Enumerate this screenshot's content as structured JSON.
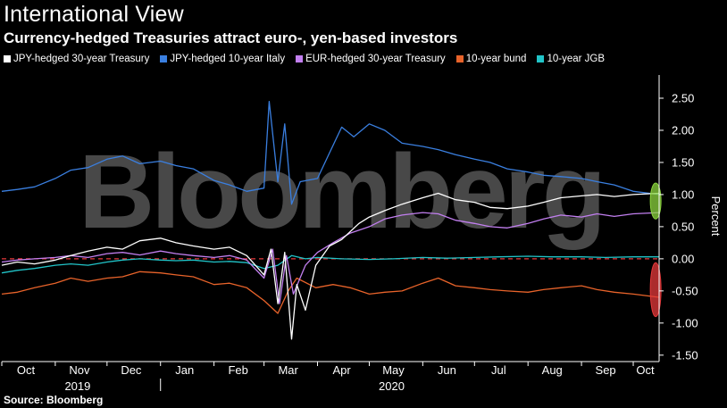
{
  "header": {
    "title": "International View",
    "subtitle": "Currency-hedged Treasuries attract euro-, yen-based investors"
  },
  "footer": {
    "source": "Source: Bloomberg"
  },
  "watermark": "Bloomberg",
  "chart_data": {
    "type": "line",
    "title": "International View",
    "subtitle": "Currency-hedged Treasuries attract euro-, yen-based investors",
    "ylabel": "Percent",
    "ylim": [
      -1.6,
      2.75
    ],
    "yticks": [
      2.5,
      2.0,
      1.5,
      1.0,
      0.5,
      0.0,
      -0.5,
      -1.0,
      -1.5
    ],
    "ytick_labels": [
      "2.50",
      "2.00",
      "1.50",
      "1.00",
      "0.50",
      "0.00",
      "-0.50",
      "-1.00",
      "-1.50"
    ],
    "y_axis_position": "right",
    "grid": false,
    "zero_line": {
      "value": 0,
      "color": "#e5393b",
      "style": "dashed"
    },
    "legend_position": "top",
    "x_start": "2019-10-01",
    "x_end": "2020-10-16",
    "month_labels": [
      {
        "label": "Oct",
        "date": "2019-10-15"
      },
      {
        "label": "Nov",
        "date": "2019-11-15"
      },
      {
        "label": "Dec",
        "date": "2019-12-15"
      },
      {
        "label": "Jan",
        "date": "2020-01-15"
      },
      {
        "label": "Feb",
        "date": "2020-02-15"
      },
      {
        "label": "Mar",
        "date": "2020-03-15"
      },
      {
        "label": "Apr",
        "date": "2020-04-15"
      },
      {
        "label": "May",
        "date": "2020-05-15"
      },
      {
        "label": "Jun",
        "date": "2020-06-15"
      },
      {
        "label": "Jul",
        "date": "2020-07-15"
      },
      {
        "label": "Aug",
        "date": "2020-08-15"
      },
      {
        "label": "Sep",
        "date": "2020-09-15"
      },
      {
        "label": "Oct",
        "date": "2020-10-08"
      }
    ],
    "year_labels": [
      {
        "label": "2019",
        "date": "2019-11-15"
      },
      {
        "label": "2020",
        "date": "2020-05-15"
      }
    ],
    "year_divider": "2020-01-01",
    "series": [
      {
        "name": "JPY-hedged 30-year Treasury",
        "color": "#ffffff",
        "points": [
          [
            "2019-10-01",
            -0.1
          ],
          [
            "2019-10-10",
            -0.05
          ],
          [
            "2019-10-20",
            -0.08
          ],
          [
            "2019-11-01",
            -0.02
          ],
          [
            "2019-11-10",
            0.05
          ],
          [
            "2019-11-20",
            0.12
          ],
          [
            "2019-12-01",
            0.18
          ],
          [
            "2019-12-10",
            0.15
          ],
          [
            "2019-12-20",
            0.28
          ],
          [
            "2020-01-01",
            0.32
          ],
          [
            "2020-01-10",
            0.25
          ],
          [
            "2020-01-20",
            0.2
          ],
          [
            "2020-02-01",
            0.15
          ],
          [
            "2020-02-10",
            0.18
          ],
          [
            "2020-02-20",
            0.05
          ],
          [
            "2020-03-01",
            -0.25
          ],
          [
            "2020-03-05",
            0.15
          ],
          [
            "2020-03-09",
            -0.7
          ],
          [
            "2020-03-13",
            0.1
          ],
          [
            "2020-03-17",
            -1.25
          ],
          [
            "2020-03-20",
            -0.4
          ],
          [
            "2020-03-25",
            -0.8
          ],
          [
            "2020-03-31",
            -0.1
          ],
          [
            "2020-04-08",
            0.2
          ],
          [
            "2020-04-15",
            0.3
          ],
          [
            "2020-04-25",
            0.55
          ],
          [
            "2020-05-01",
            0.65
          ],
          [
            "2020-05-10",
            0.75
          ],
          [
            "2020-05-20",
            0.85
          ],
          [
            "2020-06-01",
            0.95
          ],
          [
            "2020-06-10",
            1.02
          ],
          [
            "2020-06-20",
            0.92
          ],
          [
            "2020-07-01",
            0.88
          ],
          [
            "2020-07-10",
            0.8
          ],
          [
            "2020-07-20",
            0.78
          ],
          [
            "2020-08-01",
            0.82
          ],
          [
            "2020-08-10",
            0.88
          ],
          [
            "2020-08-20",
            0.95
          ],
          [
            "2020-09-01",
            0.98
          ],
          [
            "2020-09-10",
            1.0
          ],
          [
            "2020-09-20",
            0.97
          ],
          [
            "2020-10-01",
            1.0
          ],
          [
            "2020-10-16",
            1.02
          ]
        ]
      },
      {
        "name": "JPY-hedged 10-year Italy",
        "color": "#3a7fe0",
        "points": [
          [
            "2019-10-01",
            1.05
          ],
          [
            "2019-10-10",
            1.08
          ],
          [
            "2019-10-20",
            1.12
          ],
          [
            "2019-11-01",
            1.25
          ],
          [
            "2019-11-10",
            1.38
          ],
          [
            "2019-11-20",
            1.42
          ],
          [
            "2019-12-01",
            1.55
          ],
          [
            "2019-12-10",
            1.6
          ],
          [
            "2019-12-20",
            1.48
          ],
          [
            "2020-01-01",
            1.52
          ],
          [
            "2020-01-10",
            1.45
          ],
          [
            "2020-01-20",
            1.4
          ],
          [
            "2020-02-01",
            1.22
          ],
          [
            "2020-02-10",
            1.15
          ],
          [
            "2020-02-20",
            1.05
          ],
          [
            "2020-03-01",
            1.1
          ],
          [
            "2020-03-04",
            2.45
          ],
          [
            "2020-03-09",
            1.2
          ],
          [
            "2020-03-13",
            2.1
          ],
          [
            "2020-03-17",
            0.85
          ],
          [
            "2020-03-22",
            1.2
          ],
          [
            "2020-04-01",
            1.25
          ],
          [
            "2020-04-08",
            1.65
          ],
          [
            "2020-04-15",
            2.05
          ],
          [
            "2020-04-22",
            1.9
          ],
          [
            "2020-05-01",
            2.1
          ],
          [
            "2020-05-10",
            2.0
          ],
          [
            "2020-05-20",
            1.8
          ],
          [
            "2020-06-01",
            1.75
          ],
          [
            "2020-06-10",
            1.7
          ],
          [
            "2020-06-20",
            1.62
          ],
          [
            "2020-07-01",
            1.55
          ],
          [
            "2020-07-10",
            1.5
          ],
          [
            "2020-07-20",
            1.4
          ],
          [
            "2020-08-01",
            1.35
          ],
          [
            "2020-08-10",
            1.3
          ],
          [
            "2020-08-20",
            1.28
          ],
          [
            "2020-09-01",
            1.25
          ],
          [
            "2020-09-10",
            1.2
          ],
          [
            "2020-09-20",
            1.15
          ],
          [
            "2020-10-01",
            1.05
          ],
          [
            "2020-10-16",
            1.0
          ]
        ]
      },
      {
        "name": "EUR-hedged 30-year Treasury",
        "color": "#c27ff0",
        "points": [
          [
            "2019-10-01",
            -0.05
          ],
          [
            "2019-10-10",
            -0.02
          ],
          [
            "2019-10-20",
            0.0
          ],
          [
            "2019-11-01",
            0.02
          ],
          [
            "2019-11-10",
            0.05
          ],
          [
            "2019-11-20",
            0.02
          ],
          [
            "2019-12-01",
            0.08
          ],
          [
            "2019-12-10",
            0.1
          ],
          [
            "2019-12-20",
            0.06
          ],
          [
            "2020-01-01",
            0.12
          ],
          [
            "2020-01-10",
            0.08
          ],
          [
            "2020-01-20",
            0.05
          ],
          [
            "2020-02-01",
            0.02
          ],
          [
            "2020-02-10",
            0.05
          ],
          [
            "2020-02-20",
            -0.02
          ],
          [
            "2020-03-01",
            -0.3
          ],
          [
            "2020-03-06",
            0.15
          ],
          [
            "2020-03-10",
            -0.7
          ],
          [
            "2020-03-14",
            0.05
          ],
          [
            "2020-03-18",
            -0.55
          ],
          [
            "2020-03-25",
            -0.1
          ],
          [
            "2020-04-01",
            0.1
          ],
          [
            "2020-04-10",
            0.25
          ],
          [
            "2020-04-20",
            0.4
          ],
          [
            "2020-05-01",
            0.5
          ],
          [
            "2020-05-10",
            0.62
          ],
          [
            "2020-05-20",
            0.68
          ],
          [
            "2020-06-01",
            0.72
          ],
          [
            "2020-06-10",
            0.7
          ],
          [
            "2020-06-20",
            0.6
          ],
          [
            "2020-07-01",
            0.55
          ],
          [
            "2020-07-10",
            0.5
          ],
          [
            "2020-07-20",
            0.48
          ],
          [
            "2020-08-01",
            0.55
          ],
          [
            "2020-08-10",
            0.62
          ],
          [
            "2020-08-20",
            0.68
          ],
          [
            "2020-09-01",
            0.65
          ],
          [
            "2020-09-10",
            0.7
          ],
          [
            "2020-09-20",
            0.66
          ],
          [
            "2020-10-01",
            0.7
          ],
          [
            "2020-10-16",
            0.72
          ]
        ]
      },
      {
        "name": "10-year bund",
        "color": "#e8632a",
        "points": [
          [
            "2019-10-01",
            -0.55
          ],
          [
            "2019-10-10",
            -0.52
          ],
          [
            "2019-10-20",
            -0.45
          ],
          [
            "2019-11-01",
            -0.38
          ],
          [
            "2019-11-10",
            -0.3
          ],
          [
            "2019-11-20",
            -0.35
          ],
          [
            "2019-12-01",
            -0.3
          ],
          [
            "2019-12-10",
            -0.28
          ],
          [
            "2019-12-20",
            -0.2
          ],
          [
            "2020-01-01",
            -0.22
          ],
          [
            "2020-01-10",
            -0.25
          ],
          [
            "2020-01-20",
            -0.28
          ],
          [
            "2020-02-01",
            -0.4
          ],
          [
            "2020-02-10",
            -0.38
          ],
          [
            "2020-02-20",
            -0.45
          ],
          [
            "2020-03-01",
            -0.65
          ],
          [
            "2020-03-09",
            -0.85
          ],
          [
            "2020-03-15",
            -0.5
          ],
          [
            "2020-03-20",
            -0.3
          ],
          [
            "2020-03-31",
            -0.45
          ],
          [
            "2020-04-10",
            -0.4
          ],
          [
            "2020-04-20",
            -0.45
          ],
          [
            "2020-05-01",
            -0.55
          ],
          [
            "2020-05-10",
            -0.52
          ],
          [
            "2020-05-20",
            -0.5
          ],
          [
            "2020-06-01",
            -0.38
          ],
          [
            "2020-06-10",
            -0.3
          ],
          [
            "2020-06-20",
            -0.42
          ],
          [
            "2020-07-01",
            -0.45
          ],
          [
            "2020-07-10",
            -0.48
          ],
          [
            "2020-07-20",
            -0.5
          ],
          [
            "2020-08-01",
            -0.52
          ],
          [
            "2020-08-10",
            -0.48
          ],
          [
            "2020-08-20",
            -0.45
          ],
          [
            "2020-09-01",
            -0.42
          ],
          [
            "2020-09-10",
            -0.48
          ],
          [
            "2020-09-20",
            -0.52
          ],
          [
            "2020-10-01",
            -0.55
          ],
          [
            "2020-10-16",
            -0.6
          ]
        ]
      },
      {
        "name": "10-year JGB",
        "color": "#21c4c8",
        "points": [
          [
            "2019-10-01",
            -0.22
          ],
          [
            "2019-10-10",
            -0.18
          ],
          [
            "2019-10-20",
            -0.15
          ],
          [
            "2019-11-01",
            -0.1
          ],
          [
            "2019-11-10",
            -0.08
          ],
          [
            "2019-11-20",
            -0.1
          ],
          [
            "2019-12-01",
            -0.05
          ],
          [
            "2019-12-10",
            -0.02
          ],
          [
            "2019-12-20",
            0.0
          ],
          [
            "2020-01-01",
            -0.02
          ],
          [
            "2020-01-10",
            -0.03
          ],
          [
            "2020-01-20",
            -0.02
          ],
          [
            "2020-02-01",
            -0.05
          ],
          [
            "2020-02-10",
            -0.04
          ],
          [
            "2020-02-20",
            -0.06
          ],
          [
            "2020-03-01",
            -0.15
          ],
          [
            "2020-03-09",
            -0.1
          ],
          [
            "2020-03-17",
            0.05
          ],
          [
            "2020-03-25",
            0.0
          ],
          [
            "2020-04-01",
            0.02
          ],
          [
            "2020-04-15",
            0.0
          ],
          [
            "2020-05-01",
            -0.01
          ],
          [
            "2020-05-15",
            0.0
          ],
          [
            "2020-06-01",
            0.02
          ],
          [
            "2020-06-15",
            0.01
          ],
          [
            "2020-07-01",
            0.02
          ],
          [
            "2020-07-15",
            0.03
          ],
          [
            "2020-08-01",
            0.04
          ],
          [
            "2020-08-15",
            0.03
          ],
          [
            "2020-09-01",
            0.03
          ],
          [
            "2020-09-15",
            0.02
          ],
          [
            "2020-10-01",
            0.03
          ],
          [
            "2020-10-16",
            0.03
          ]
        ]
      }
    ],
    "annotations": [
      {
        "type": "ellipse",
        "color": "#8cd63f",
        "center_date": "2020-10-14",
        "center_value": 0.9,
        "value_half_height": 0.28
      },
      {
        "type": "ellipse",
        "color": "#e5393b",
        "center_date": "2020-10-14",
        "center_value": -0.48,
        "value_half_height": 0.42
      }
    ]
  }
}
